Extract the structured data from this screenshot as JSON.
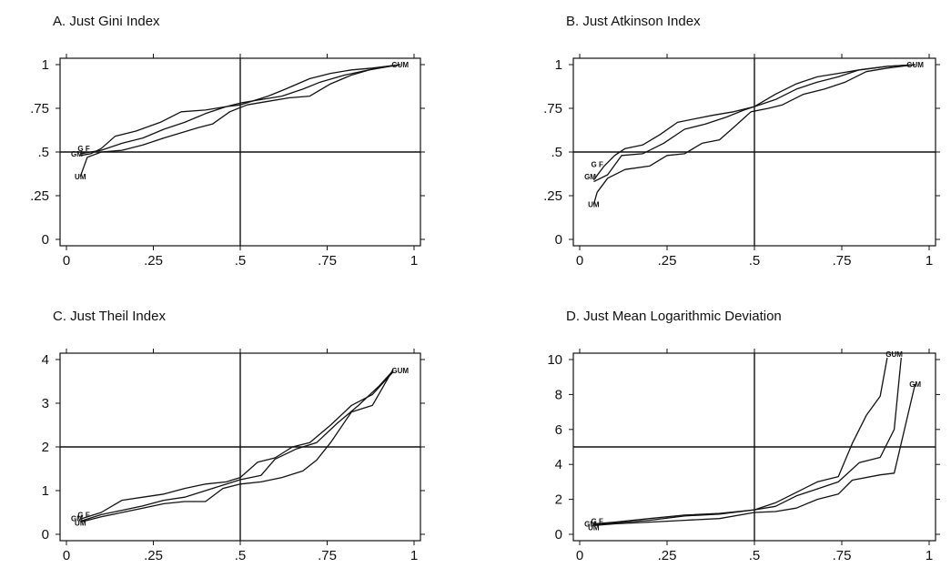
{
  "figure": {
    "panels_layout": "2x2 grid"
  },
  "chart_data": [
    {
      "type": "line",
      "title": "A. Just Gini Index",
      "xlabel": "",
      "ylabel": "",
      "xlim": [
        0,
        1
      ],
      "ylim": [
        0,
        1
      ],
      "x_ticks": [
        0,
        0.25,
        0.5,
        0.75,
        1
      ],
      "x_tick_labels": [
        "0",
        ".25",
        ".5",
        ".75",
        "1"
      ],
      "y_ticks": [
        0,
        0.25,
        0.5,
        0.75,
        1
      ],
      "y_tick_labels": [
        "0",
        ".25",
        ".5",
        ".75",
        "1"
      ],
      "reference_lines": {
        "x": 0.5,
        "y": 0.5
      },
      "grid": false,
      "start_labels": [
        {
          "text": "G F",
          "x": 0.05,
          "y": 0.52
        },
        {
          "text": "GM",
          "x": 0.03,
          "y": 0.49
        },
        {
          "text": "UM",
          "x": 0.04,
          "y": 0.36
        }
      ],
      "end_labels": [
        {
          "text": "GUM",
          "x": 0.96,
          "y": 1.0
        }
      ],
      "series": [
        {
          "x": [
            0.04,
            0.07,
            0.1,
            0.14,
            0.2,
            0.27,
            0.33,
            0.4,
            0.46,
            0.5,
            0.58,
            0.63,
            0.7,
            0.76,
            0.82,
            0.88,
            0.96
          ],
          "y": [
            0.48,
            0.49,
            0.52,
            0.59,
            0.62,
            0.67,
            0.73,
            0.74,
            0.76,
            0.77,
            0.82,
            0.86,
            0.92,
            0.95,
            0.97,
            0.98,
            1.0
          ]
        },
        {
          "x": [
            0.04,
            0.07,
            0.1,
            0.16,
            0.22,
            0.28,
            0.34,
            0.4,
            0.46,
            0.5,
            0.56,
            0.62,
            0.68,
            0.73,
            0.8,
            0.87,
            0.96
          ],
          "y": [
            0.49,
            0.5,
            0.51,
            0.55,
            0.58,
            0.63,
            0.67,
            0.72,
            0.76,
            0.78,
            0.8,
            0.82,
            0.86,
            0.9,
            0.94,
            0.97,
            1.0
          ]
        },
        {
          "x": [
            0.04,
            0.06,
            0.1,
            0.16,
            0.22,
            0.28,
            0.33,
            0.38,
            0.42,
            0.47,
            0.52,
            0.58,
            0.64,
            0.7,
            0.76,
            0.82,
            0.89,
            0.96
          ],
          "y": [
            0.36,
            0.47,
            0.5,
            0.51,
            0.54,
            0.58,
            0.61,
            0.64,
            0.66,
            0.73,
            0.77,
            0.79,
            0.81,
            0.82,
            0.89,
            0.94,
            0.98,
            1.0
          ]
        }
      ]
    },
    {
      "type": "line",
      "title": "B. Just Atkinson Index",
      "xlabel": "",
      "ylabel": "",
      "xlim": [
        0,
        1
      ],
      "ylim": [
        0,
        1
      ],
      "x_ticks": [
        0,
        0.25,
        0.5,
        0.75,
        1
      ],
      "x_tick_labels": [
        "0",
        ".25",
        ".5",
        ".75",
        "1"
      ],
      "y_ticks": [
        0,
        0.25,
        0.5,
        0.75,
        1
      ],
      "y_tick_labels": [
        "0",
        ".25",
        ".5",
        ".75",
        "1"
      ],
      "reference_lines": {
        "x": 0.5,
        "y": 0.5
      },
      "grid": false,
      "start_labels": [
        {
          "text": "G F",
          "x": 0.05,
          "y": 0.43
        },
        {
          "text": "GM",
          "x": 0.03,
          "y": 0.36
        },
        {
          "text": "UM",
          "x": 0.04,
          "y": 0.2
        }
      ],
      "end_labels": [
        {
          "text": "GUM",
          "x": 0.96,
          "y": 1.0
        }
      ],
      "series": [
        {
          "x": [
            0.04,
            0.07,
            0.1,
            0.13,
            0.18,
            0.23,
            0.28,
            0.33,
            0.38,
            0.44,
            0.5,
            0.56,
            0.62,
            0.68,
            0.74,
            0.8,
            0.88,
            0.96
          ],
          "y": [
            0.34,
            0.42,
            0.48,
            0.52,
            0.54,
            0.6,
            0.67,
            0.69,
            0.71,
            0.73,
            0.76,
            0.83,
            0.89,
            0.93,
            0.95,
            0.97,
            0.99,
            1.0
          ]
        },
        {
          "x": [
            0.04,
            0.08,
            0.12,
            0.18,
            0.24,
            0.3,
            0.36,
            0.42,
            0.47,
            0.5,
            0.56,
            0.62,
            0.68,
            0.74,
            0.8,
            0.88,
            0.96
          ],
          "y": [
            0.33,
            0.37,
            0.48,
            0.49,
            0.55,
            0.63,
            0.66,
            0.7,
            0.74,
            0.76,
            0.8,
            0.86,
            0.9,
            0.93,
            0.97,
            0.99,
            1.0
          ]
        },
        {
          "x": [
            0.04,
            0.05,
            0.08,
            0.13,
            0.2,
            0.25,
            0.3,
            0.35,
            0.4,
            0.44,
            0.49,
            0.54,
            0.58,
            0.64,
            0.7,
            0.76,
            0.82,
            0.88,
            0.96
          ],
          "y": [
            0.2,
            0.27,
            0.35,
            0.4,
            0.42,
            0.48,
            0.49,
            0.55,
            0.57,
            0.64,
            0.73,
            0.75,
            0.77,
            0.83,
            0.86,
            0.9,
            0.96,
            0.98,
            1.0
          ]
        }
      ]
    },
    {
      "type": "line",
      "title": "C. Just Theil Index",
      "xlabel": "",
      "ylabel": "",
      "xlim": [
        0,
        1
      ],
      "ylim": [
        0,
        4
      ],
      "x_ticks": [
        0,
        0.25,
        0.5,
        0.75,
        1
      ],
      "x_tick_labels": [
        "0",
        ".25",
        ".5",
        ".75",
        "1"
      ],
      "y_ticks": [
        0,
        1,
        2,
        3,
        4
      ],
      "y_tick_labels": [
        "0",
        "1",
        "2",
        "3",
        "4"
      ],
      "reference_lines": {
        "x": 0.5,
        "y": 2
      },
      "grid": false,
      "start_labels": [
        {
          "text": "G F",
          "x": 0.05,
          "y": 0.45
        },
        {
          "text": "GM",
          "x": 0.03,
          "y": 0.36
        },
        {
          "text": "UM",
          "x": 0.04,
          "y": 0.26
        }
      ],
      "end_labels": [
        {
          "text": "GUM",
          "x": 0.96,
          "y": 3.75
        }
      ],
      "series": [
        {
          "x": [
            0.04,
            0.1,
            0.16,
            0.22,
            0.28,
            0.34,
            0.4,
            0.46,
            0.5,
            0.55,
            0.6,
            0.65,
            0.7,
            0.76,
            0.82,
            0.88,
            0.94
          ],
          "y": [
            0.35,
            0.5,
            0.78,
            0.85,
            0.92,
            1.05,
            1.15,
            1.2,
            1.3,
            1.65,
            1.75,
            2.0,
            2.1,
            2.5,
            2.95,
            3.2,
            3.72
          ]
        },
        {
          "x": [
            0.04,
            0.1,
            0.16,
            0.22,
            0.28,
            0.34,
            0.42,
            0.48,
            0.5,
            0.56,
            0.6,
            0.66,
            0.72,
            0.78,
            0.84,
            0.9,
            0.94
          ],
          "y": [
            0.3,
            0.45,
            0.55,
            0.65,
            0.78,
            0.85,
            1.05,
            1.2,
            1.25,
            1.35,
            1.72,
            1.95,
            2.1,
            2.55,
            2.95,
            3.4,
            3.75
          ]
        },
        {
          "x": [
            0.04,
            0.1,
            0.16,
            0.22,
            0.28,
            0.34,
            0.4,
            0.45,
            0.5,
            0.56,
            0.62,
            0.68,
            0.72,
            0.76,
            0.82,
            0.88,
            0.94
          ],
          "y": [
            0.28,
            0.4,
            0.5,
            0.6,
            0.7,
            0.75,
            0.75,
            1.05,
            1.15,
            1.2,
            1.3,
            1.45,
            1.7,
            2.1,
            2.8,
            2.95,
            3.78
          ]
        }
      ]
    },
    {
      "type": "line",
      "title": "D. Just Mean Logarithmic Deviation",
      "xlabel": "",
      "ylabel": "",
      "xlim": [
        0,
        1
      ],
      "ylim": [
        0,
        10
      ],
      "x_ticks": [
        0,
        0.25,
        0.5,
        0.75,
        1
      ],
      "x_tick_labels": [
        "0",
        ".25",
        ".5",
        ".75",
        "1"
      ],
      "y_ticks": [
        0,
        2,
        4,
        6,
        8,
        10
      ],
      "y_tick_labels": [
        "0",
        "2",
        "4",
        "6",
        "8",
        "10"
      ],
      "reference_lines": {
        "x": 0.5,
        "y": 5
      },
      "grid": false,
      "start_labels": [
        {
          "text": "G F",
          "x": 0.05,
          "y": 0.75
        },
        {
          "text": "GM",
          "x": 0.03,
          "y": 0.6
        },
        {
          "text": "UM",
          "x": 0.04,
          "y": 0.4
        }
      ],
      "end_labels": [
        {
          "text": "GUM",
          "x": 0.9,
          "y": 10.3
        },
        {
          "text": "GM",
          "x": 0.96,
          "y": 8.6
        }
      ],
      "series": [
        {
          "x": [
            0.04,
            0.1,
            0.2,
            0.3,
            0.4,
            0.5,
            0.56,
            0.62,
            0.68,
            0.74,
            0.78,
            0.82,
            0.86,
            0.88
          ],
          "y": [
            0.6,
            0.7,
            0.9,
            1.1,
            1.2,
            1.4,
            1.8,
            2.4,
            3.0,
            3.3,
            5.2,
            6.8,
            7.9,
            10.1
          ]
        },
        {
          "x": [
            0.04,
            0.1,
            0.2,
            0.3,
            0.4,
            0.5,
            0.56,
            0.62,
            0.68,
            0.74,
            0.8,
            0.86,
            0.9,
            0.92
          ],
          "y": [
            0.55,
            0.65,
            0.8,
            1.05,
            1.15,
            1.4,
            1.6,
            2.2,
            2.6,
            3.0,
            4.1,
            4.4,
            6.0,
            10.1
          ]
        },
        {
          "x": [
            0.04,
            0.1,
            0.2,
            0.3,
            0.4,
            0.5,
            0.56,
            0.62,
            0.68,
            0.74,
            0.78,
            0.86,
            0.9,
            0.96
          ],
          "y": [
            0.5,
            0.6,
            0.7,
            0.8,
            0.9,
            1.25,
            1.3,
            1.5,
            2.0,
            2.3,
            3.1,
            3.4,
            3.5,
            8.6
          ]
        }
      ]
    }
  ]
}
